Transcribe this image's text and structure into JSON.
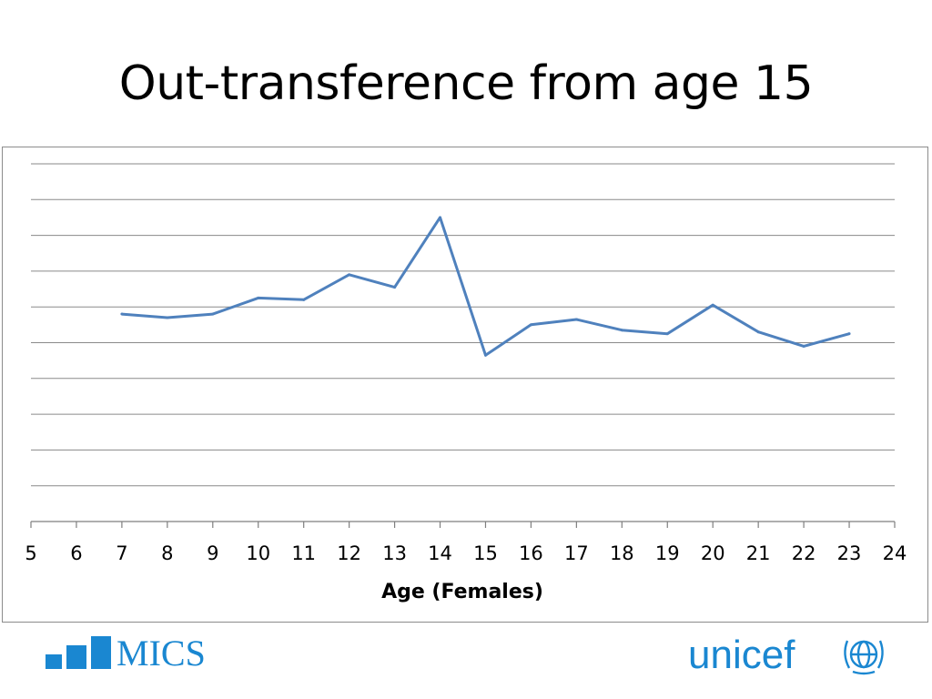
{
  "slide": {
    "title": "Out-transference from age 15"
  },
  "chart_data": {
    "type": "line",
    "xlabel": "Age (Females)",
    "ylabel": "",
    "x_ticks": [
      5,
      6,
      7,
      8,
      9,
      10,
      11,
      12,
      13,
      14,
      15,
      16,
      17,
      18,
      19,
      20,
      21,
      22,
      23,
      24
    ],
    "xlim": [
      5,
      24
    ],
    "ylim": [
      0,
      10
    ],
    "y_tick_labels_shown": false,
    "gridlines": "horizontal",
    "legend": "none",
    "series": [
      {
        "color": "#4f81bd",
        "x": [
          7,
          8,
          9,
          10,
          11,
          12,
          13,
          14,
          15,
          16,
          17,
          18,
          19,
          20,
          21,
          22,
          23
        ],
        "y": [
          5.8,
          5.7,
          5.8,
          6.25,
          6.2,
          6.9,
          6.55,
          8.5,
          4.65,
          5.5,
          5.65,
          5.35,
          5.25,
          6.05,
          5.3,
          4.9,
          5.25
        ]
      }
    ]
  },
  "logos": {
    "mics": {
      "text": "MICS",
      "color": "#1a87d1"
    },
    "unicef": {
      "text": "unicef",
      "color": "#1a87d1"
    }
  }
}
